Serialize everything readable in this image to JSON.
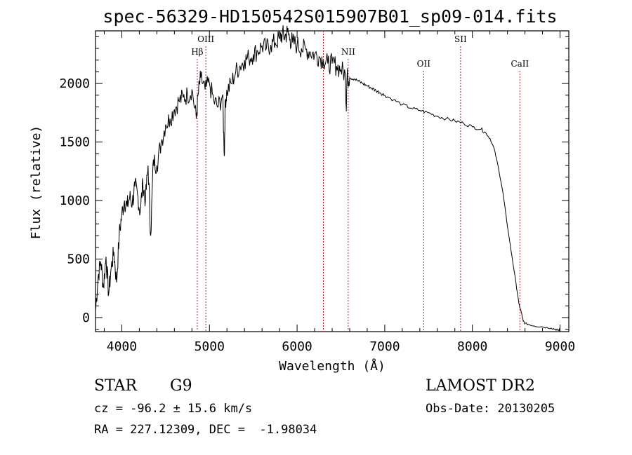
{
  "chart_data": {
    "type": "line",
    "title": "spec-56329-HD150542S015907B01_sp09-014.fits",
    "xlabel": "Wavelength (Å)",
    "ylabel": "Flux (relative)",
    "xlim": [
      3700,
      9100
    ],
    "ylim": [
      -120,
      2450
    ],
    "xticks": [
      4000,
      5000,
      6000,
      7000,
      8000,
      9000
    ],
    "yticks": [
      0,
      500,
      1000,
      1500,
      2000
    ],
    "grid": false,
    "line_color": "#000000",
    "marker_color": "#b22222",
    "series": [
      {
        "x": [
          3700,
          3730,
          3760,
          3790,
          3820,
          3850,
          3880,
          3910,
          3940,
          3970,
          4000,
          4030,
          4060,
          4090,
          4120,
          4150,
          4180,
          4210,
          4240,
          4270,
          4300,
          4330,
          4360,
          4400,
          4450,
          4500,
          4550,
          4600,
          4650,
          4700,
          4750,
          4800,
          4850,
          4870,
          4900,
          4950,
          5000,
          5050,
          5100,
          5150,
          5170,
          5180,
          5200,
          5250,
          5300,
          5350,
          5400,
          5450,
          5500,
          5550,
          5600,
          5650,
          5700,
          5750,
          5800,
          5830,
          5860,
          5890,
          5920,
          5950,
          6000,
          6050,
          6100,
          6150,
          6200,
          6250,
          6300,
          6350,
          6400,
          6450,
          6500,
          6550,
          6560,
          6570,
          6600,
          6650,
          6700,
          6750,
          6800,
          6850,
          6900,
          6950,
          7000,
          7100,
          7200,
          7300,
          7400,
          7500,
          7600,
          7700,
          7800,
          7900,
          8000,
          8100,
          8150,
          8200,
          8250,
          8300,
          8350,
          8400,
          8450,
          8500,
          8530,
          8560,
          8580,
          8600,
          8650,
          8700,
          8800,
          8900,
          8950,
          8980,
          9000
        ],
        "y": [
          60,
          350,
          480,
          260,
          520,
          200,
          430,
          560,
          300,
          700,
          880,
          1000,
          950,
          1030,
          980,
          1120,
          1050,
          900,
          1150,
          1000,
          1300,
          700,
          1350,
          1300,
          1500,
          1650,
          1700,
          1780,
          1850,
          1880,
          1900,
          1950,
          1700,
          1900,
          2050,
          1950,
          2000,
          1850,
          1800,
          1900,
          1380,
          1850,
          1930,
          2000,
          2100,
          2150,
          2200,
          2220,
          2250,
          2280,
          2320,
          2300,
          2330,
          2350,
          2380,
          2420,
          2400,
          2440,
          2380,
          2350,
          2330,
          2300,
          2290,
          2270,
          2250,
          2230,
          2200,
          2170,
          2170,
          2150,
          2120,
          2080,
          1800,
          2050,
          2050,
          2040,
          2020,
          2000,
          1980,
          1960,
          1940,
          1920,
          1900,
          1860,
          1820,
          1790,
          1770,
          1750,
          1720,
          1700,
          1680,
          1660,
          1630,
          1610,
          1580,
          1530,
          1440,
          1270,
          1060,
          780,
          530,
          280,
          120,
          40,
          -30,
          -50,
          -60,
          -70,
          -80,
          -90,
          -100,
          -110,
          -100
        ],
        "note_points": []
      }
    ],
    "lines": [
      {
        "label": "Hβ",
        "x": 4861
      },
      {
        "label": "OIII",
        "x": 4959
      },
      {
        "label": "",
        "x": 6300
      },
      {
        "label": "NII",
        "x": 6583
      },
      {
        "label": "OII",
        "x": 7444
      },
      {
        "label": "SII",
        "x": 7865
      },
      {
        "label": "CaII",
        "x": 8542
      }
    ]
  },
  "info": {
    "object": "STAR",
    "subclass": "G9",
    "survey": "LAMOST DR2",
    "cz": "cz = -96.2 ± 15.6 km/s",
    "obs_date": "Obs-Date: 20130205",
    "radec": "RA = 227.12309, DEC =  -1.98034"
  }
}
